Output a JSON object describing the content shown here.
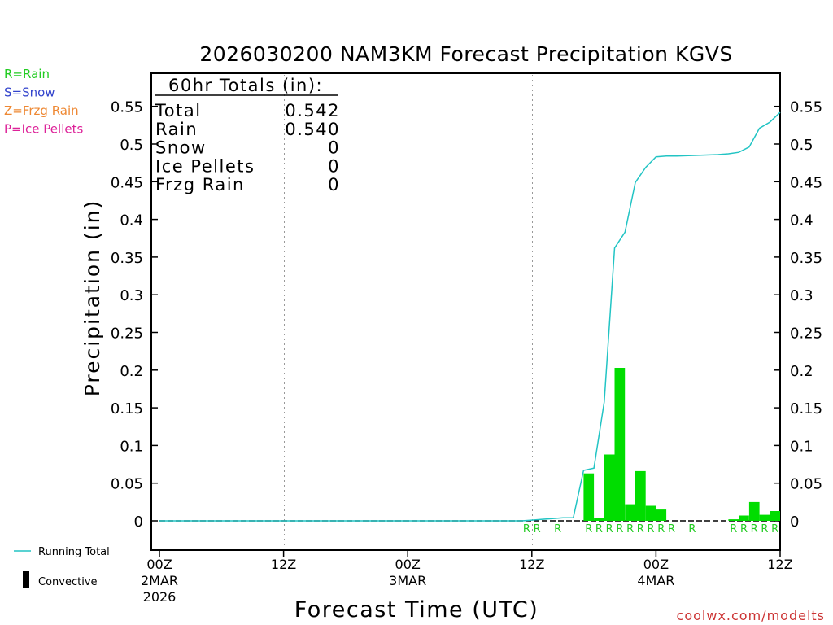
{
  "chart_data": {
    "type": "bar",
    "title": "2026030200 NAM3KM Forecast Precipitation KGVS",
    "xlabel": "Forecast Time (UTC)",
    "ylabel": "Precipitation (in)",
    "ylim": [
      -0.038,
      0.595
    ],
    "xlim_hours": [
      0,
      60
    ],
    "y_ticks": [
      "0",
      "0.05",
      "0.1",
      "0.15",
      "0.2",
      "0.25",
      "0.3",
      "0.35",
      "0.4",
      "0.45",
      "0.5",
      "0.55"
    ],
    "y_tick_values": [
      0,
      0.05,
      0.1,
      0.15,
      0.2,
      0.25,
      0.3,
      0.35,
      0.4,
      0.45,
      0.5,
      0.55
    ],
    "x_ticks": [
      {
        "hour": 0,
        "label": "00Z",
        "date": "2MAR",
        "year": "2026"
      },
      {
        "hour": 12,
        "label": "12Z",
        "date": "",
        "year": ""
      },
      {
        "hour": 24,
        "label": "00Z",
        "date": "3MAR",
        "year": ""
      },
      {
        "hour": 36,
        "label": "12Z",
        "date": "",
        "year": ""
      },
      {
        "hour": 48,
        "label": "00Z",
        "date": "4MAR",
        "year": ""
      },
      {
        "hour": 60,
        "label": "12Z",
        "date": "",
        "year": ""
      }
    ],
    "grid_hours": [
      12,
      24,
      36,
      48
    ],
    "legend_types": [
      {
        "text": "R=Rain",
        "color": "#22cc22"
      },
      {
        "text": "S=Snow",
        "color": "#3344cc"
      },
      {
        "text": "Z=Frzg Rain",
        "color": "#ee8833"
      },
      {
        "text": "P=Ice Pellets",
        "color": "#dd2299"
      }
    ],
    "legend_lines": {
      "running_total": "Running Total",
      "convective": "Convective"
    },
    "totals_box": {
      "header": "60hr Totals (in):",
      "rows": [
        {
          "label": "Total",
          "value": "0.542"
        },
        {
          "label": "Rain",
          "value": "0.540"
        },
        {
          "label": "Snow",
          "value": "0"
        },
        {
          "label": "Ice Pellets",
          "value": "0"
        },
        {
          "label": "Frzg Rain",
          "value": "0"
        }
      ]
    },
    "bar_series": {
      "name": "Hourly Precipitation",
      "color": "#00dd00",
      "bars": [
        {
          "hour": 42,
          "value": 0.063
        },
        {
          "hour": 43,
          "value": 0.004
        },
        {
          "hour": 44,
          "value": 0.088
        },
        {
          "hour": 45,
          "value": 0.203
        },
        {
          "hour": 46,
          "value": 0.022
        },
        {
          "hour": 47,
          "value": 0.066
        },
        {
          "hour": 48,
          "value": 0.02
        },
        {
          "hour": 49,
          "value": 0.015
        },
        {
          "hour": 56,
          "value": 0.002
        },
        {
          "hour": 57,
          "value": 0.007
        },
        {
          "hour": 58,
          "value": 0.025
        },
        {
          "hour": 59,
          "value": 0.008
        },
        {
          "hour": 60,
          "value": 0.013
        }
      ]
    },
    "running_total": {
      "name": "Running Total",
      "color": "#22c4c4",
      "points": [
        [
          0,
          0
        ],
        [
          35,
          0
        ],
        [
          36,
          0.001
        ],
        [
          37,
          0.002
        ],
        [
          38,
          0.003
        ],
        [
          39,
          0.004
        ],
        [
          40,
          0.004
        ],
        [
          41,
          0.067
        ],
        [
          42,
          0.07
        ],
        [
          43,
          0.158
        ],
        [
          44,
          0.362
        ],
        [
          45,
          0.383
        ],
        [
          46,
          0.449
        ],
        [
          47,
          0.469
        ],
        [
          48,
          0.483
        ],
        [
          49,
          0.484
        ],
        [
          50,
          0.484
        ],
        [
          52,
          0.485
        ],
        [
          54,
          0.486
        ],
        [
          55,
          0.487
        ],
        [
          56,
          0.489
        ],
        [
          57,
          0.496
        ],
        [
          58,
          0.521
        ],
        [
          59,
          0.529
        ],
        [
          60,
          0.542
        ]
      ]
    },
    "ptype_markers": [
      {
        "hour": 36,
        "label": "R"
      },
      {
        "hour": 37,
        "label": "R"
      },
      {
        "hour": 39,
        "label": "R"
      },
      {
        "hour": 42,
        "label": "R"
      },
      {
        "hour": 43,
        "label": "R"
      },
      {
        "hour": 44,
        "label": "R"
      },
      {
        "hour": 45,
        "label": "R"
      },
      {
        "hour": 46,
        "label": "R"
      },
      {
        "hour": 47,
        "label": "R"
      },
      {
        "hour": 48,
        "label": "R"
      },
      {
        "hour": 49,
        "label": "R"
      },
      {
        "hour": 50,
        "label": "R"
      },
      {
        "hour": 52,
        "label": "R"
      },
      {
        "hour": 56,
        "label": "R"
      },
      {
        "hour": 57,
        "label": "R"
      },
      {
        "hour": 58,
        "label": "R"
      },
      {
        "hour": 59,
        "label": "R"
      },
      {
        "hour": 60,
        "label": "R"
      }
    ],
    "watermark": "coolwx.com/modelts"
  }
}
